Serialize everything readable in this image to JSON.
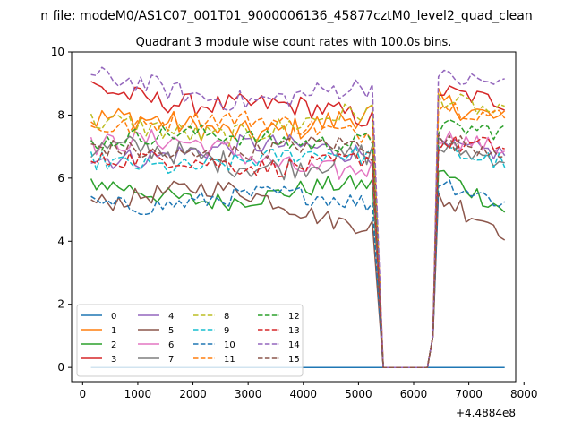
{
  "figure": {
    "suptitle": "n file: modeM0/AS1C07_001T01_9000006136_45877cztM0_level2_quad_clean",
    "offset_label": "+4.4884e8"
  },
  "chart_data": {
    "type": "line",
    "title": "Quadrant 3 module wise count rates with 100.0s bins.",
    "xlabel": "",
    "ylabel": "",
    "xlim": [
      -200,
      7850
    ],
    "ylim": [
      -0.45,
      10.0
    ],
    "xticks": [
      0,
      1000,
      2000,
      3000,
      4000,
      5000,
      6000,
      7000,
      8000
    ],
    "yticks": [
      0,
      2,
      4,
      6,
      8,
      10
    ],
    "grid": false,
    "legend": {
      "placement": "lower-left",
      "columns": 4
    },
    "segments": {
      "seg1_x": [
        150,
        5250
      ],
      "gap_x": [
        5450,
        6250
      ],
      "seg2_x": [
        6350,
        7650
      ],
      "step": 100
    },
    "series": [
      {
        "name": "0",
        "color": "#1f77b4",
        "dash": "solid",
        "seg1": {
          "start": 0.0,
          "end": 0.0,
          "noise": 0.0,
          "amp": 0.0
        },
        "seg2": {
          "start": 0.0,
          "end": 0.0,
          "noise": 0.0
        }
      },
      {
        "name": "1",
        "color": "#ff7f0e",
        "dash": "solid",
        "seg1": {
          "start": 7.6,
          "end": 7.8,
          "noise": 0.4,
          "amp": 0.3
        },
        "seg2": {
          "start": 8.5,
          "end": 7.8,
          "noise": 0.4
        }
      },
      {
        "name": "2",
        "color": "#2ca02c",
        "dash": "solid",
        "seg1": {
          "start": 5.6,
          "end": 5.5,
          "noise": 0.3,
          "amp": 0.3
        },
        "seg2": {
          "start": 6.3,
          "end": 5.0,
          "noise": 0.3
        }
      },
      {
        "name": "3",
        "color": "#d62728",
        "dash": "solid",
        "seg1": {
          "start": 8.9,
          "end": 7.8,
          "noise": 0.35,
          "amp": 0.2
        },
        "seg2": {
          "start": 8.8,
          "end": 8.4,
          "noise": 0.3
        }
      },
      {
        "name": "4",
        "color": "#9467bd",
        "dash": "solid",
        "seg1": {
          "start": 6.8,
          "end": 6.9,
          "noise": 0.35,
          "amp": 0.2
        },
        "seg2": {
          "start": 7.0,
          "end": 6.8,
          "noise": 0.3
        }
      },
      {
        "name": "5",
        "color": "#8c564b",
        "dash": "solid",
        "seg1": {
          "start": 5.6,
          "end": 4.9,
          "noise": 0.3,
          "amp": 0.4
        },
        "seg2": {
          "start": 5.5,
          "end": 4.4,
          "noise": 0.4
        }
      },
      {
        "name": "6",
        "color": "#e377c2",
        "dash": "solid",
        "seg1": {
          "start": 7.1,
          "end": 6.4,
          "noise": 0.35,
          "amp": 0.3
        },
        "seg2": {
          "start": 7.4,
          "end": 6.9,
          "noise": 0.3
        }
      },
      {
        "name": "7",
        "color": "#7f7f7f",
        "dash": "solid",
        "seg1": {
          "start": 6.7,
          "end": 6.6,
          "noise": 0.4,
          "amp": 0.3
        },
        "seg2": {
          "start": 7.0,
          "end": 6.6,
          "noise": 0.3
        }
      },
      {
        "name": "8",
        "color": "#bcbd22",
        "dash": "dashed",
        "seg1": {
          "start": 7.5,
          "end": 7.8,
          "noise": 0.35,
          "amp": 0.3
        },
        "seg2": {
          "start": 8.6,
          "end": 8.0,
          "noise": 0.3
        }
      },
      {
        "name": "9",
        "color": "#17becf",
        "dash": "dashed",
        "seg1": {
          "start": 6.5,
          "end": 6.6,
          "noise": 0.3,
          "amp": 0.2
        },
        "seg2": {
          "start": 6.9,
          "end": 6.5,
          "noise": 0.3
        }
      },
      {
        "name": "10",
        "color": "#1f77b4",
        "dash": "dashed",
        "seg1": {
          "start": 5.3,
          "end": 5.3,
          "noise": 0.3,
          "amp": 0.2
        },
        "seg2": {
          "start": 6.0,
          "end": 5.2,
          "noise": 0.3
        }
      },
      {
        "name": "11",
        "color": "#ff7f0e",
        "dash": "dashed",
        "seg1": {
          "start": 7.8,
          "end": 7.6,
          "noise": 0.3,
          "amp": 0.2
        },
        "seg2": {
          "start": 8.4,
          "end": 7.9,
          "noise": 0.3
        }
      },
      {
        "name": "12",
        "color": "#2ca02c",
        "dash": "dashed",
        "seg1": {
          "start": 7.2,
          "end": 7.3,
          "noise": 0.3,
          "amp": 0.2
        },
        "seg2": {
          "start": 7.6,
          "end": 7.5,
          "noise": 0.3
        }
      },
      {
        "name": "13",
        "color": "#d62728",
        "dash": "dashed",
        "seg1": {
          "start": 6.4,
          "end": 6.6,
          "noise": 0.3,
          "amp": 0.2
        },
        "seg2": {
          "start": 7.1,
          "end": 7.0,
          "noise": 0.3
        }
      },
      {
        "name": "14",
        "color": "#9467bd",
        "dash": "dashed",
        "seg1": {
          "start": 8.9,
          "end": 8.6,
          "noise": 0.35,
          "amp": 0.3
        },
        "seg2": {
          "start": 9.2,
          "end": 9.0,
          "noise": 0.3
        }
      },
      {
        "name": "15",
        "color": "#8c564b",
        "dash": "dashed",
        "seg1": {
          "start": 6.9,
          "end": 6.9,
          "noise": 0.3,
          "amp": 0.2
        },
        "seg2": {
          "start": 7.2,
          "end": 6.9,
          "noise": 0.3
        }
      }
    ]
  }
}
